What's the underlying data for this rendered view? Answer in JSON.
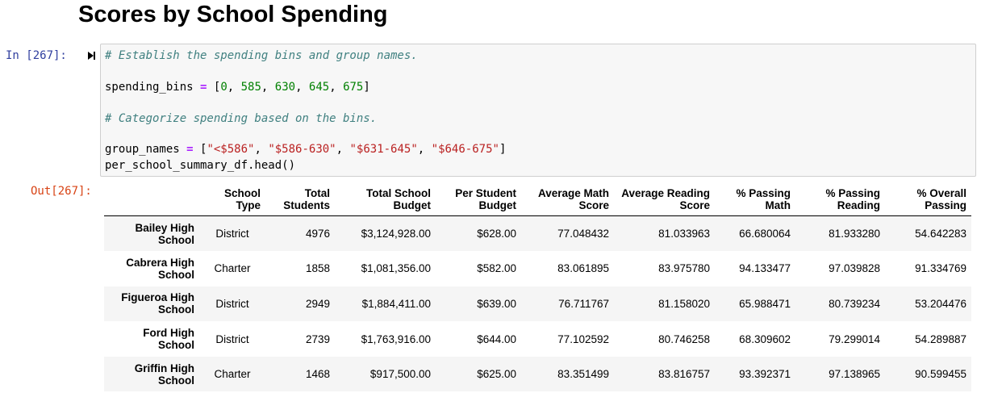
{
  "heading": "Scores by School Spending",
  "cell": {
    "in_prompt": "In [267]:",
    "out_prompt": "Out[267]:",
    "code": {
      "comment1": "# Establish the spending bins and group names.",
      "bins_var": "spending_bins ",
      "bins_eq": "=",
      "bins_open": " [",
      "bins_vals": [
        "0",
        "585",
        "630",
        "645",
        "675"
      ],
      "bins_close": "]",
      "comment2": "# Categorize spending based on the bins.",
      "names_var": "group_names ",
      "names_eq": "=",
      "names_open": " [",
      "names_vals": [
        "\"<$586\"",
        "\"$586-630\"",
        "\"$631-645\"",
        "\"$646-675\""
      ],
      "names_close": "]",
      "head_call": "per_school_summary_df.head()"
    }
  },
  "table": {
    "columns": [
      {
        "line1": "",
        "line2": ""
      },
      {
        "line1": "School",
        "line2": "Type"
      },
      {
        "line1": "Total",
        "line2": "Students"
      },
      {
        "line1": "Total School",
        "line2": "Budget"
      },
      {
        "line1": "Per Student",
        "line2": "Budget"
      },
      {
        "line1": "Average Math",
        "line2": "Score"
      },
      {
        "line1": "Average Reading",
        "line2": "Score"
      },
      {
        "line1": "% Passing",
        "line2": "Math"
      },
      {
        "line1": "% Passing",
        "line2": "Reading"
      },
      {
        "line1": "% Overall",
        "line2": "Passing"
      }
    ],
    "rows": [
      {
        "name1": "Bailey High",
        "name2": "School",
        "cells": [
          "District",
          "4976",
          "$3,124,928.00",
          "$628.00",
          "77.048432",
          "81.033963",
          "66.680064",
          "81.933280",
          "54.642283"
        ]
      },
      {
        "name1": "Cabrera High",
        "name2": "School",
        "cells": [
          "Charter",
          "1858",
          "$1,081,356.00",
          "$582.00",
          "83.061895",
          "83.975780",
          "94.133477",
          "97.039828",
          "91.334769"
        ]
      },
      {
        "name1": "Figueroa High",
        "name2": "School",
        "cells": [
          "District",
          "2949",
          "$1,884,411.00",
          "$639.00",
          "76.711767",
          "81.158020",
          "65.988471",
          "80.739234",
          "53.204476"
        ]
      },
      {
        "name1": "Ford High",
        "name2": "School",
        "cells": [
          "District",
          "2739",
          "$1,763,916.00",
          "$644.00",
          "77.102592",
          "80.746258",
          "68.309602",
          "79.299014",
          "54.289887"
        ]
      },
      {
        "name1": "Griffin High",
        "name2": "School",
        "cells": [
          "Charter",
          "1468",
          "$917,500.00",
          "$625.00",
          "83.351499",
          "83.816757",
          "93.392371",
          "97.138965",
          "90.599455"
        ]
      }
    ]
  }
}
